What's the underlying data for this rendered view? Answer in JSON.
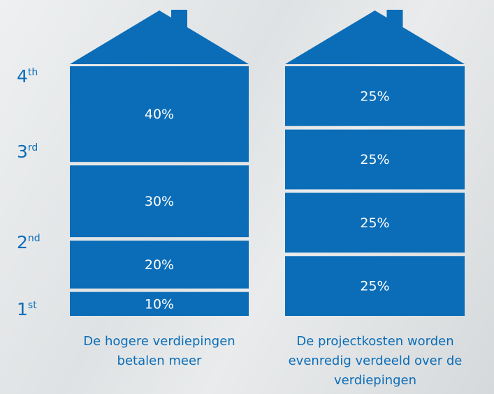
{
  "floor_labels": [
    {
      "base": "4",
      "sup": "th"
    },
    {
      "base": "3",
      "sup": "rd"
    },
    {
      "base": "2",
      "sup": "nd"
    },
    {
      "base": "1",
      "sup": "st"
    }
  ],
  "chart_data": [
    {
      "type": "stacked-column",
      "caption": "De hogere verdiepingen betalen meer",
      "color": "#0b6db7",
      "values": [
        10,
        20,
        30,
        40
      ],
      "value_labels": [
        "10%",
        "20%",
        "30%",
        "40%"
      ]
    },
    {
      "type": "stacked-column",
      "caption": "De projectkosten worden evenredig verdeeld over de verdiepingen",
      "color": "#0b6db7",
      "values": [
        25,
        25,
        25,
        25
      ],
      "value_labels": [
        "25%",
        "25%",
        "25%",
        "25%"
      ]
    }
  ]
}
